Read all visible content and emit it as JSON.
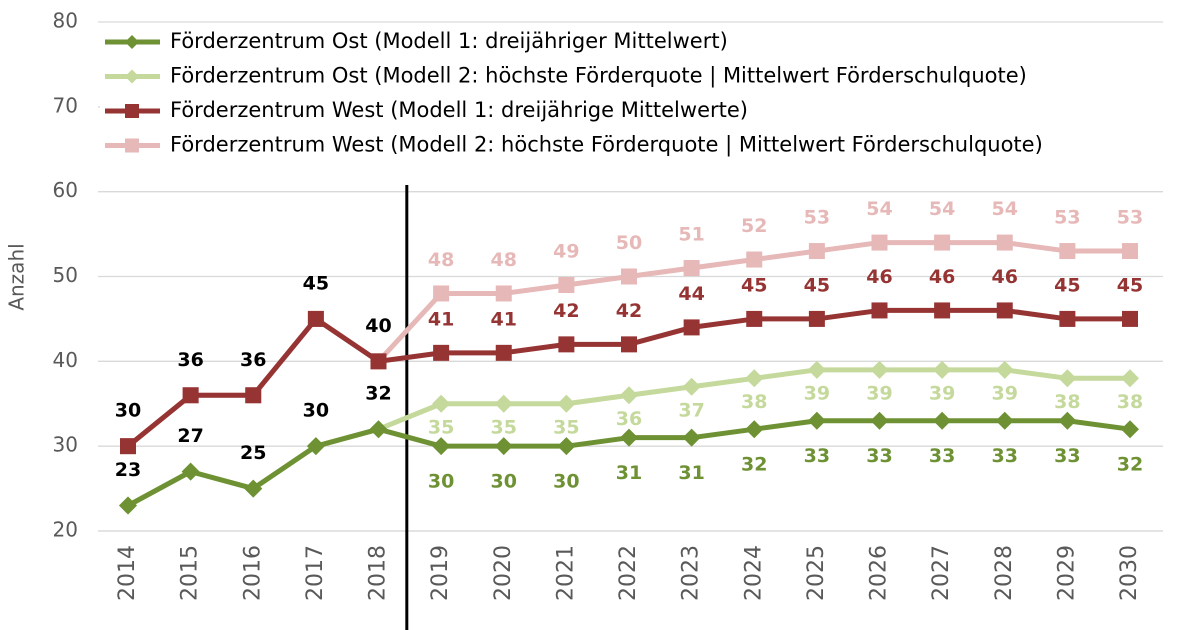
{
  "chart_data": {
    "type": "line",
    "y_label": "Anzahl",
    "categories": [
      "2014",
      "2015",
      "2016",
      "2017",
      "2018",
      "2019",
      "2020",
      "2021",
      "2022",
      "2023",
      "2024",
      "2025",
      "2026",
      "2027",
      "2028",
      "2029",
      "2030"
    ],
    "series": [
      {
        "name": "Förderzentrum Ost (Modell 1: dreijähriger Mittelwert)",
        "color": "#6e9134",
        "marker": "diamond",
        "values": [
          23,
          27,
          25,
          30,
          32,
          30,
          30,
          30,
          31,
          31,
          32,
          33,
          33,
          33,
          33,
          33,
          32
        ]
      },
      {
        "name": "Förderzentrum Ost (Modell 2: höchste Förderquote | Mittelwert Förderschulquote)",
        "color": "#c4d99b",
        "marker": "diamond",
        "values": [
          23,
          27,
          25,
          30,
          32,
          35,
          35,
          35,
          36,
          37,
          38,
          39,
          39,
          39,
          39,
          38,
          38
        ]
      },
      {
        "name": "Förderzentrum West (Modell 1: dreijährige Mittelwerte)",
        "color": "#963434",
        "marker": "square",
        "values": [
          30,
          36,
          36,
          45,
          40,
          41,
          41,
          42,
          42,
          44,
          45,
          45,
          46,
          46,
          46,
          45,
          45
        ]
      },
      {
        "name": "Förderzentrum West (Modell 2: höchste Förderquote | Mittelwert Förderschulquote)",
        "color": "#e6b8b7",
        "marker": "square",
        "values": [
          30,
          36,
          36,
          45,
          40,
          48,
          48,
          49,
          50,
          51,
          52,
          53,
          54,
          54,
          54,
          53,
          53
        ]
      }
    ],
    "ylim": [
      20,
      80
    ],
    "yticks": [
      20,
      30,
      40,
      50,
      60,
      70,
      80
    ],
    "grid": true
  }
}
